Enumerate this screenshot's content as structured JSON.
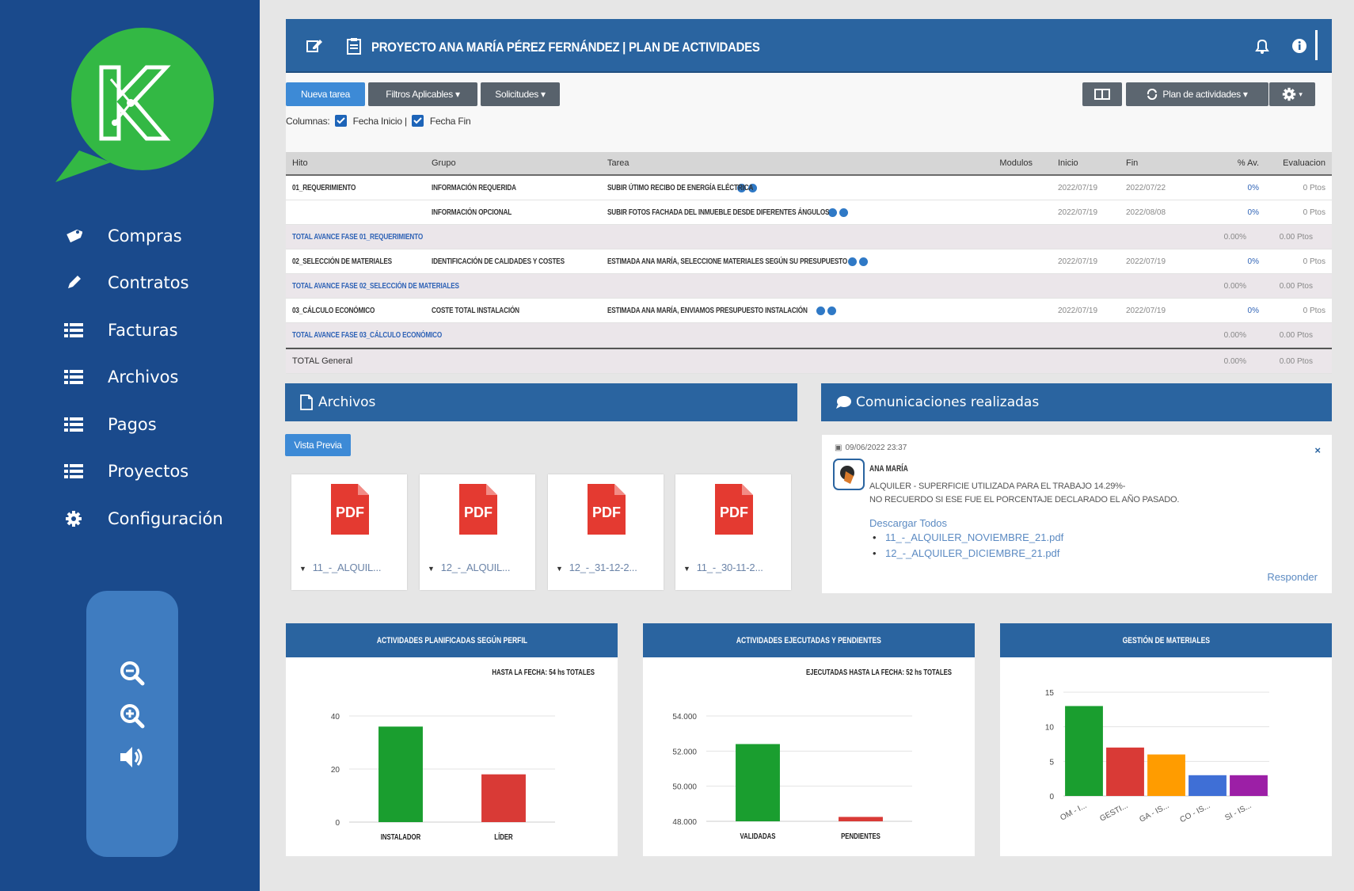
{
  "sidebar": {
    "items": [
      {
        "label": "Compras",
        "icon": "tag-icon"
      },
      {
        "label": "Contratos",
        "icon": "pen-icon"
      },
      {
        "label": "Facturas",
        "icon": "list-icon"
      },
      {
        "label": "Archivos",
        "icon": "list-icon"
      },
      {
        "label": "Pagos",
        "icon": "list-icon"
      },
      {
        "label": "Proyectos",
        "icon": "list-icon"
      },
      {
        "label": "Configuración",
        "icon": "gear-icon"
      }
    ]
  },
  "header": {
    "title": "PROYECTO ANA MARÍA PÉREZ FERNÁNDEZ  |  PLAN DE ACTIVIDADES"
  },
  "toolbar": {
    "nueva_tarea": "Nueva tarea",
    "filtros": "Filtros Aplicables ▾",
    "solicitudes": "Solicitudes ▾",
    "plan": "Plan de actividades ▾",
    "columnas_label": "Columnas:",
    "fecha_inicio": "Fecha Inicio |",
    "fecha_fin": "Fecha Fin"
  },
  "table": {
    "headers": [
      "Hito",
      "Grupo",
      "Tarea",
      "Modulos",
      "Inicio",
      "Fin",
      "% Av.",
      "Evaluacion"
    ],
    "rows": [
      {
        "hito": "01_REQUERIMIENTO",
        "grupo": "INFORMACIÓN REQUERIDA",
        "tarea": "SUBIR ÚTIMO RECIBO DE ENERGÍA ELÉCTRICA",
        "inicio": "2022/07/19",
        "fin": "2022/07/22",
        "av": "0%",
        "eval": "0 Ptos"
      },
      {
        "hito": "",
        "grupo": "INFORMACIÓN OPCIONAL",
        "tarea": "SUBIR FOTOS FACHADA DEL INMUEBLE DESDE DIFERENTES ÁNGULOS",
        "inicio": "2022/07/19",
        "fin": "2022/08/08",
        "av": "0%",
        "eval": "0 Ptos"
      },
      {
        "total": "TOTAL AVANCE FASE 01_REQUERIMIENTO",
        "av": "0.00%",
        "eval": "0.00 Ptos"
      },
      {
        "hito": "02_SELECCIÓN DE MATERIALES",
        "grupo": "IDENTIFICACIÓN DE CALIDADES Y COSTES",
        "tarea": "ESTIMADA ANA MARÍA, SELECCIONE MATERIALES SEGÚN SU PRESUPUESTO",
        "inicio": "2022/07/19",
        "fin": "2022/07/19",
        "av": "0%",
        "eval": "0 Ptos"
      },
      {
        "total": "TOTAL AVANCE FASE 02_SELECCIÓN DE MATERIALES",
        "av": "0.00%",
        "eval": "0.00 Ptos"
      },
      {
        "hito": "03_CÁLCULO ECONÓMICO",
        "grupo": "COSTE TOTAL INSTALACIÓN",
        "tarea": "ESTIMADA ANA MARÍA, ENVIAMOS PRESUPUESTO INSTALACIÓN",
        "inicio": "2022/07/19",
        "fin": "2022/07/19",
        "av": "0%",
        "eval": "0 Ptos"
      },
      {
        "total": "TOTAL AVANCE FASE 03_CÁLCULO ECONÓMICO",
        "av": "0.00%",
        "eval": "0.00 Ptos"
      }
    ],
    "general": {
      "label": "TOTAL General",
      "av": "0.00%",
      "eval": "0.00 Ptos"
    }
  },
  "archivos": {
    "title": "Archivos",
    "vista_previa": "Vista Previa",
    "pdf_label": "PDF",
    "files": [
      "11_-_ALQUIL...",
      "12_-_ALQUIL...",
      "12_-_31-12-2...",
      "11_-_30-11-2..."
    ]
  },
  "comunicaciones": {
    "title": "Comunicaciones realizadas",
    "date": "09/06/2022 23:37",
    "close": "×",
    "author": "ANA MARÍA",
    "message_lines": [
      "ALQUILER - SUPERFICIE UTILIZADA PARA EL TRABAJO 14.29%-",
      "NO RECUERDO SI ESE FUE EL PORCENTAJE DECLARADO EL AÑO PASADO."
    ],
    "download_all": "Descargar Todos",
    "attachments": [
      "11_-_ALQUILER_NOVIEMBRE_21.pdf",
      "12_-_ALQUILER_DICIEMBRE_21.pdf"
    ],
    "reply": "Responder"
  },
  "chart_data": [
    {
      "type": "bar",
      "title": "ACTIVIDADES  PLANIFICADAS SEGÚN PERFIL",
      "subtitle": "HASTA LA FECHA:  54 hs TOTALES",
      "categories": [
        "INSTALADOR",
        "LÍDER"
      ],
      "values": [
        36,
        18
      ],
      "colors": [
        "#1a9e2f",
        "#d93a36"
      ],
      "yticks": [
        "0",
        "20",
        "40"
      ],
      "ylim": [
        0,
        40
      ]
    },
    {
      "type": "bar",
      "title": "ACTIVIDADES  EJECUTADAS Y PENDIENTES",
      "subtitle": "EJECUTADAS HASTA LA FECHA:  52 hs TOTALES",
      "categories": [
        "VALIDADAS",
        "PENDIENTES"
      ],
      "values": [
        52400,
        48250
      ],
      "colors": [
        "#1a9e2f",
        "#d93a36"
      ],
      "yticks": [
        "48.000",
        "50.000",
        "52.000",
        "54.000"
      ],
      "ylim": [
        48000,
        54000
      ]
    },
    {
      "type": "bar",
      "title": "GESTIÓN DE MATERIALES",
      "categories": [
        "OM - I...",
        "GESTI...",
        "GA - IS...",
        "CO - IS...",
        "SI - IS..."
      ],
      "values": [
        13,
        7,
        6,
        3,
        3
      ],
      "colors": [
        "#1a9e2f",
        "#d93a36",
        "#ff9c00",
        "#3f6fd6",
        "#9c1fa6"
      ],
      "yticks": [
        "0",
        "5",
        "10",
        "15"
      ],
      "ylim": [
        0,
        15
      ]
    }
  ]
}
